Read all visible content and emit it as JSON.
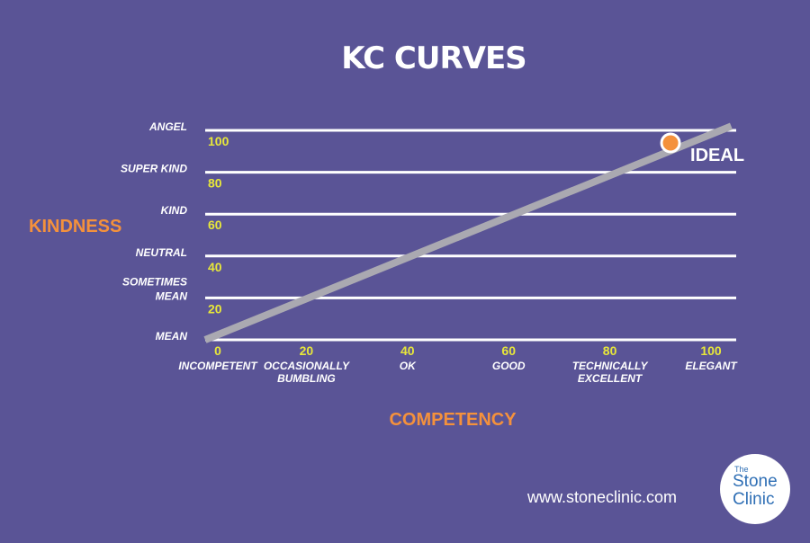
{
  "chart_data": {
    "type": "line",
    "title": "KC CURVES",
    "xlabel": "COMPETENCY",
    "ylabel": "KINDNESS",
    "xlim": [
      0,
      100
    ],
    "ylim": [
      0,
      100
    ],
    "grid": true,
    "x_ticks": [
      {
        "value": 0,
        "number": "0",
        "label": [
          "INCOMPETENT"
        ]
      },
      {
        "value": 20,
        "number": "20",
        "label": [
          "OCCASIONALLY",
          "BUMBLING"
        ]
      },
      {
        "value": 40,
        "number": "40",
        "label": [
          "OK"
        ]
      },
      {
        "value": 60,
        "number": "60",
        "label": [
          "GOOD"
        ]
      },
      {
        "value": 80,
        "number": "80",
        "label": [
          "TECHNICALLY",
          "EXCELLENT"
        ]
      },
      {
        "value": 100,
        "number": "100",
        "label": [
          "ELEGANT"
        ]
      }
    ],
    "y_ticks": [
      {
        "value": 0,
        "number": "",
        "label": [
          "MEAN"
        ]
      },
      {
        "value": 20,
        "number": "20",
        "label": [
          "SOMETIMES",
          "MEAN"
        ]
      },
      {
        "value": 40,
        "number": "40",
        "label": [
          "NEUTRAL"
        ]
      },
      {
        "value": 60,
        "number": "60",
        "label": [
          "KIND"
        ]
      },
      {
        "value": 80,
        "number": "80",
        "label": [
          "SUPER KIND"
        ]
      },
      {
        "value": 100,
        "number": "100",
        "label": [
          "ANGEL"
        ]
      }
    ],
    "series": [
      {
        "x": [
          0,
          104
        ],
        "y": [
          0,
          102
        ],
        "color": "#aaa9b1"
      }
    ],
    "annotations": [
      {
        "text": "IDEAL",
        "x": 92,
        "y": 94,
        "marker_color": "#f4913c"
      }
    ]
  },
  "footer": {
    "website": "www.stoneclinic.com"
  },
  "logo": {
    "the": "The",
    "stone": "Stone",
    "clinic": "Clinic"
  },
  "colors": {
    "background": "#5a5496",
    "gridline": "#ffffff",
    "tick_number": "#e7e73a",
    "axis_label": "#f4913c",
    "line": "#aaa9b1",
    "marker": "#f4913c"
  }
}
